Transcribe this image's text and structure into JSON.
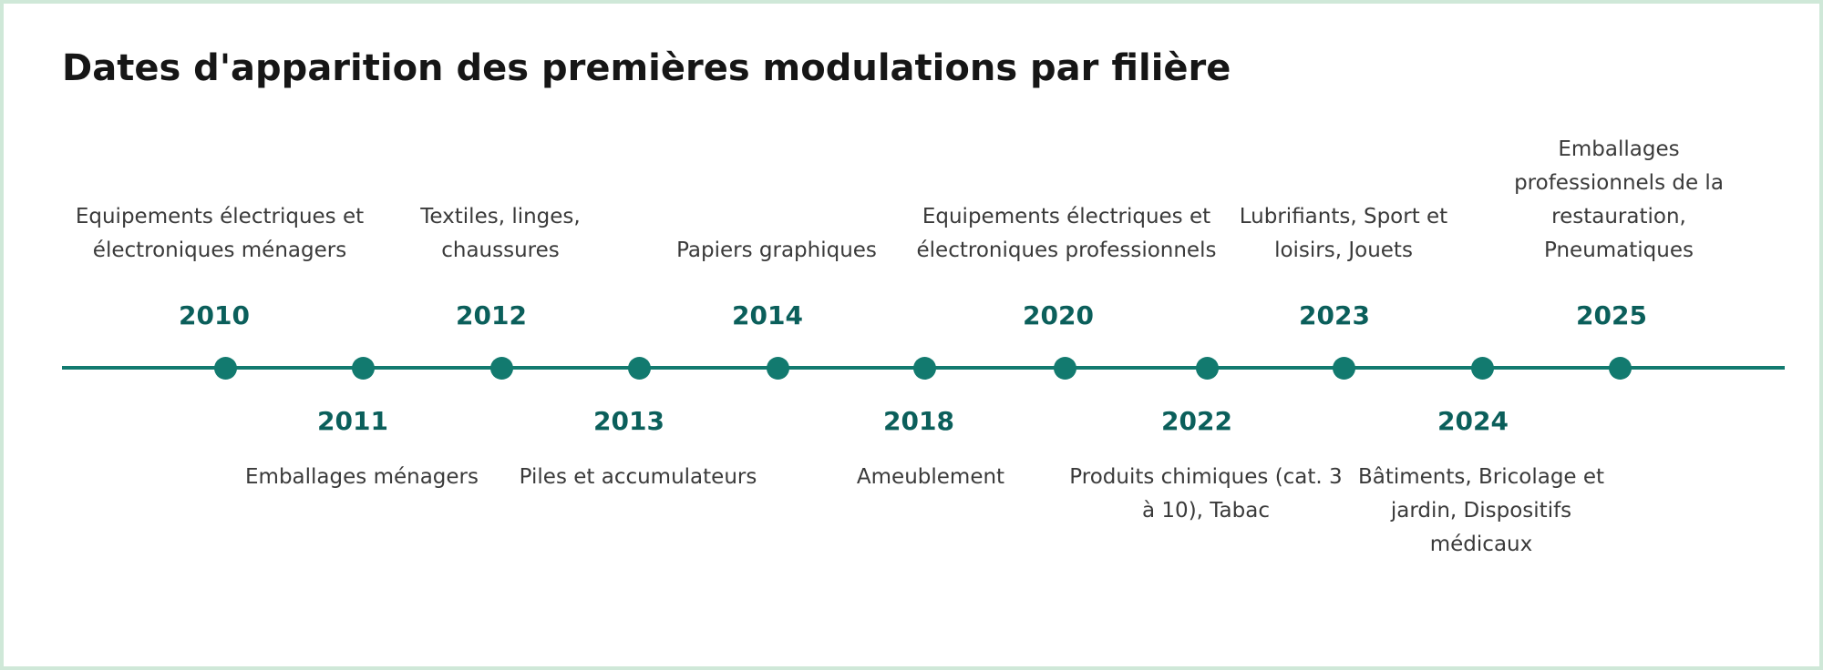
{
  "title": "Dates d'apparition des premières modulations par filière",
  "colors": {
    "accent": "#127a6f",
    "year": "#0b5f5b",
    "frame": "#cfe8d8"
  },
  "events": [
    {
      "year": "2010",
      "label": "Equipements électriques et électroniques ménagers"
    },
    {
      "year": "2011",
      "label": "Emballages ménagers"
    },
    {
      "year": "2012",
      "label": "Textiles, linges, chaussures"
    },
    {
      "year": "2013",
      "label": "Piles et accumulateurs"
    },
    {
      "year": "2014",
      "label": "Papiers graphiques"
    },
    {
      "year": "2018",
      "label": "Ameublement"
    },
    {
      "year": "2020",
      "label": "Equipements électriques et électroniques professionnels"
    },
    {
      "year": "2022",
      "label": "Produits chimiques (cat. 3 à 10), Tabac"
    },
    {
      "year": "2023",
      "label": "Lubrifiants, Sport et loisirs, Jouets"
    },
    {
      "year": "2024",
      "label": "Bâtiments, Bricolage et jardin, Dispositifs médicaux"
    },
    {
      "year": "2025",
      "label": "Emballages professionnels de la restauration, Pneumatiques"
    }
  ]
}
